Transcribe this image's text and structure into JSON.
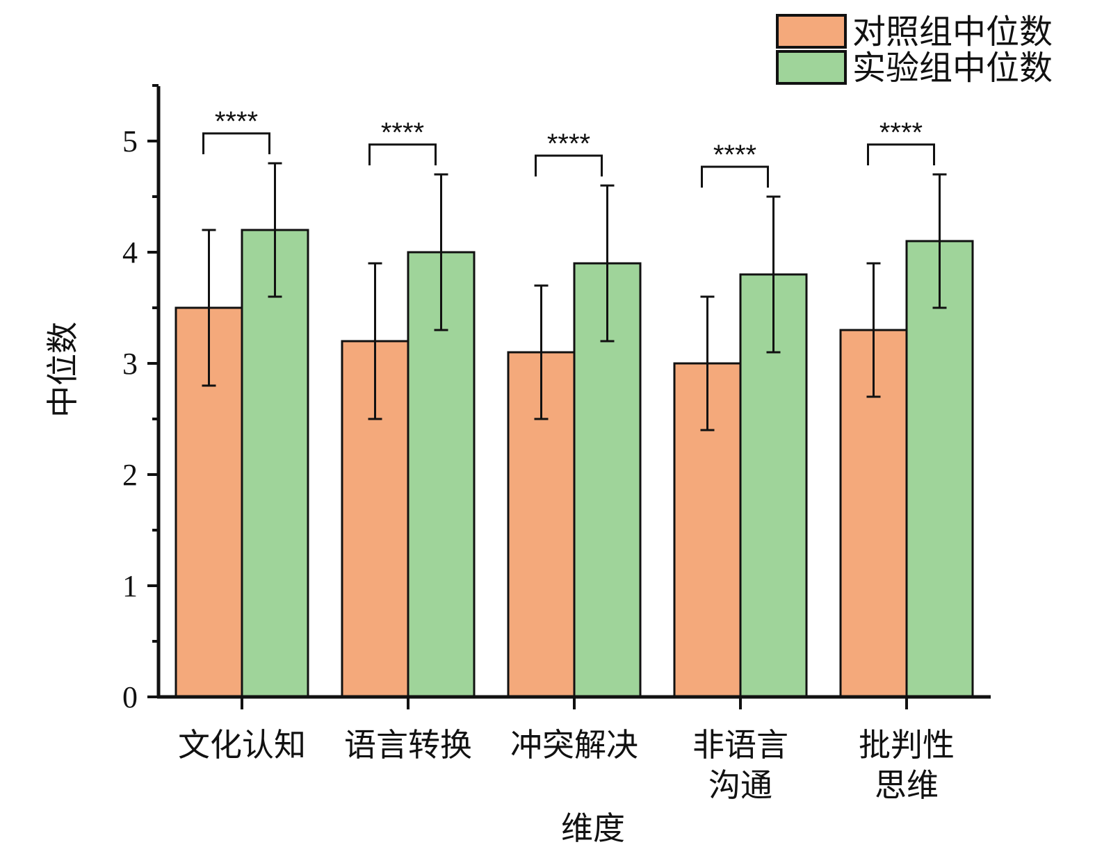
{
  "chart_data": {
    "type": "bar",
    "xlabel": "维度",
    "ylabel": "中位数",
    "ylim": [
      0,
      5.5
    ],
    "yticks": [
      0,
      1,
      2,
      3,
      4,
      5
    ],
    "categories": [
      [
        "文化认知"
      ],
      [
        "语言转换"
      ],
      [
        "冲突解决"
      ],
      [
        "非语言",
        "沟通"
      ],
      [
        "批判性",
        "思维"
      ]
    ],
    "series": [
      {
        "name": "对照组中位数",
        "color": "#f4a97b",
        "values": [
          3.5,
          3.2,
          3.1,
          3.0,
          3.3
        ],
        "errors": [
          0.7,
          0.7,
          0.6,
          0.6,
          0.6
        ]
      },
      {
        "name": "实验组中位数",
        "color": "#9fd49a",
        "values": [
          4.2,
          4.0,
          3.9,
          3.8,
          4.1
        ],
        "errors": [
          0.6,
          0.7,
          0.7,
          0.7,
          0.6
        ]
      }
    ],
    "significance": [
      "****",
      "****",
      "****",
      "****",
      "****"
    ],
    "legend_position": "top-right",
    "grid": false
  }
}
